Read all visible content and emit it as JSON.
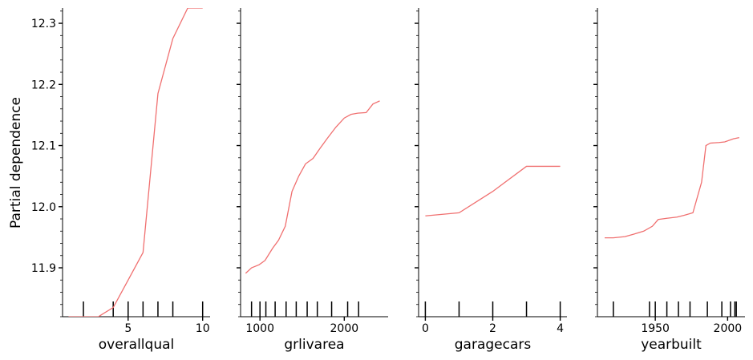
{
  "ylabel": "Partial dependence",
  "ylim": [
    11.82,
    12.325
  ],
  "y_ticks": [
    11.9,
    12.0,
    12.1,
    12.2,
    12.3
  ],
  "y_tick_labels": [
    "11.9",
    "12.0",
    "12.1",
    "12.2",
    "12.3"
  ],
  "line_color": "#f07070",
  "chart_data": [
    {
      "type": "line",
      "xlabel": "overallqual",
      "xlim": [
        0.6,
        10.5
      ],
      "x_ticks": [
        5,
        10
      ],
      "x_tick_labels": [
        "5",
        "10"
      ],
      "x": [
        1,
        2,
        3,
        4,
        5,
        6,
        7,
        8,
        9,
        10
      ],
      "y": [
        11.82,
        11.82,
        11.82,
        11.835,
        11.88,
        11.925,
        12.185,
        12.275,
        12.325,
        12.325
      ],
      "deciles": [
        2,
        4,
        5,
        6,
        7,
        8,
        10
      ]
    },
    {
      "type": "line",
      "xlabel": "grlivarea",
      "xlim": [
        770,
        2520
      ],
      "x_ticks": [
        1000,
        2000
      ],
      "x_tick_labels": [
        "1000",
        "2000"
      ],
      "x": [
        830,
        900,
        990,
        1060,
        1150,
        1220,
        1300,
        1380,
        1460,
        1540,
        1630,
        1710,
        1800,
        1900,
        2000,
        2080,
        2160,
        2260,
        2340,
        2420
      ],
      "y": [
        11.891,
        11.9,
        11.905,
        11.912,
        11.932,
        11.945,
        11.968,
        12.025,
        12.05,
        12.07,
        12.079,
        12.095,
        12.112,
        12.13,
        12.145,
        12.151,
        12.153,
        12.154,
        12.168,
        12.173
      ],
      "deciles": [
        900,
        1000,
        1070,
        1180,
        1310,
        1430,
        1560,
        1680,
        1850,
        2040,
        2170
      ]
    },
    {
      "type": "line",
      "xlabel": "garagecars",
      "xlim": [
        -0.2,
        4.2
      ],
      "x_ticks": [
        0,
        2,
        4
      ],
      "x_tick_labels": [
        "0",
        "2",
        "4"
      ],
      "x": [
        0,
        1,
        2,
        3,
        4
      ],
      "y": [
        11.985,
        11.99,
        12.025,
        12.066,
        12.066
      ],
      "deciles": [
        0,
        1,
        2,
        3,
        4
      ]
    },
    {
      "type": "line",
      "xlabel": "yearbuilt",
      "xlim": [
        1910,
        2012
      ],
      "x_ticks": [
        1950,
        2000
      ],
      "x_tick_labels": [
        "1950",
        "2000"
      ],
      "x": [
        1915,
        1921,
        1929,
        1935,
        1942,
        1948,
        1952,
        1958,
        1965,
        1970,
        1976,
        1982,
        1985,
        1988,
        1994,
        1998,
        2004,
        2008
      ],
      "y": [
        11.949,
        11.949,
        11.951,
        11.955,
        11.96,
        11.968,
        11.979,
        11.981,
        11.983,
        11.986,
        11.99,
        12.04,
        12.1,
        12.104,
        12.105,
        12.106,
        12.111,
        12.113
      ],
      "deciles": [
        1921,
        1946,
        1950,
        1958,
        1966,
        1974,
        1986,
        1996,
        2002,
        2005,
        2006
      ]
    }
  ]
}
